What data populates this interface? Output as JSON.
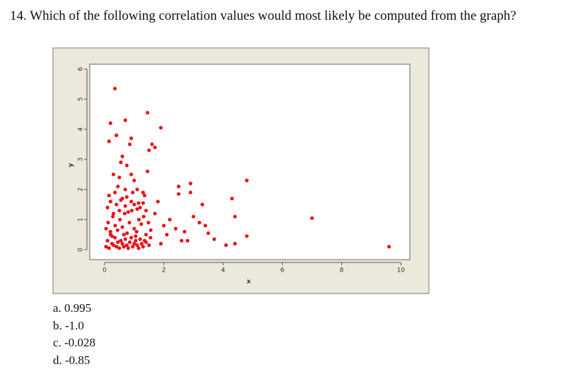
{
  "question": "14. Which of the following correlation values would most likely be computed from the graph?",
  "chart_data": {
    "type": "scatter",
    "xlabel": "x",
    "ylabel": "y",
    "xlim": [
      -0.5,
      10.3
    ],
    "ylim": [
      -0.33,
      6.16
    ],
    "xticks": [
      0,
      2,
      4,
      6,
      8,
      10
    ],
    "yticks": [
      0,
      1,
      2,
      3,
      4,
      5,
      6
    ],
    "series": [
      {
        "color": "#e8141a",
        "x": [
          0.35,
          0.2,
          0.7,
          0.4,
          0.15,
          1.45,
          1.9,
          1.6,
          1.5,
          1.7,
          0.9,
          0.85,
          0.6,
          0.55,
          0.75,
          0.3,
          0.5,
          0.9,
          1.0,
          1.45,
          1.1,
          0.45,
          0.7,
          1.3,
          2.5,
          2.5,
          2.9,
          2.9,
          3.3,
          4.3,
          4.8,
          4.4,
          7.0,
          9.6,
          4.8,
          4.4,
          4.1,
          3.7,
          3.5,
          3.2,
          3.4,
          3.0,
          2.7,
          2.6,
          2.8,
          2.4,
          2.2,
          2.1,
          2.0,
          1.9,
          1.8,
          1.7,
          0.05,
          0.1,
          0.15,
          0.2,
          0.25,
          0.3,
          0.35,
          0.4,
          0.45,
          0.5,
          0.55,
          0.6,
          0.65,
          0.7,
          0.75,
          0.8,
          0.85,
          0.9,
          0.95,
          1.0,
          1.05,
          1.1,
          1.15,
          1.2,
          1.25,
          1.3,
          1.35,
          1.4,
          1.5,
          1.55,
          0.05,
          0.12,
          0.2,
          0.28,
          0.36,
          0.44,
          0.52,
          0.6,
          0.68,
          0.76,
          0.84,
          0.92,
          1.0,
          1.08,
          1.16,
          1.24,
          1.32,
          1.4,
          1.48,
          1.56,
          0.1,
          0.2,
          0.3,
          0.4,
          0.5,
          0.6,
          0.7,
          0.8,
          0.9,
          1.0,
          1.1,
          1.2,
          1.3,
          1.4,
          0.15,
          0.35,
          0.55,
          0.75,
          0.95,
          1.15,
          1.35,
          0.25,
          0.65,
          1.05
        ],
        "values": [
          5.35,
          4.2,
          4.3,
          3.8,
          3.6,
          4.55,
          4.05,
          3.5,
          3.3,
          3.4,
          3.7,
          3.5,
          3.1,
          2.9,
          2.8,
          2.5,
          2.4,
          2.5,
          2.3,
          2.6,
          2.0,
          2.1,
          2.0,
          1.9,
          2.1,
          1.85,
          2.2,
          1.9,
          1.5,
          1.7,
          2.3,
          1.1,
          1.05,
          0.1,
          0.45,
          0.2,
          0.15,
          0.35,
          0.55,
          0.9,
          0.8,
          1.1,
          0.6,
          0.3,
          0.3,
          0.7,
          1.0,
          0.5,
          0.8,
          0.2,
          1.6,
          1.2,
          0.1,
          0.3,
          0.05,
          0.5,
          0.2,
          0.15,
          0.4,
          0.1,
          0.25,
          0.05,
          0.3,
          0.2,
          0.1,
          0.35,
          0.15,
          0.05,
          0.25,
          0.4,
          0.1,
          0.2,
          0.3,
          0.15,
          0.05,
          0.35,
          0.2,
          0.1,
          0.3,
          0.25,
          0.15,
          0.4,
          0.7,
          0.9,
          0.6,
          1.1,
          0.8,
          0.65,
          1.0,
          0.75,
          1.2,
          0.55,
          0.9,
          1.3,
          0.7,
          0.6,
          1.0,
          0.85,
          1.1,
          0.5,
          0.9,
          0.65,
          1.4,
          1.6,
          1.2,
          1.5,
          1.3,
          1.7,
          1.45,
          1.25,
          1.6,
          1.5,
          1.35,
          1.4,
          1.55,
          1.3,
          1.8,
          1.9,
          1.65,
          1.75,
          1.9,
          1.55,
          1.8,
          0.45,
          0.5,
          0.45
        ]
      }
    ]
  },
  "options": [
    "a.  0.995",
    "b. -1.0",
    "c. -0.028",
    "d. -0.85"
  ]
}
